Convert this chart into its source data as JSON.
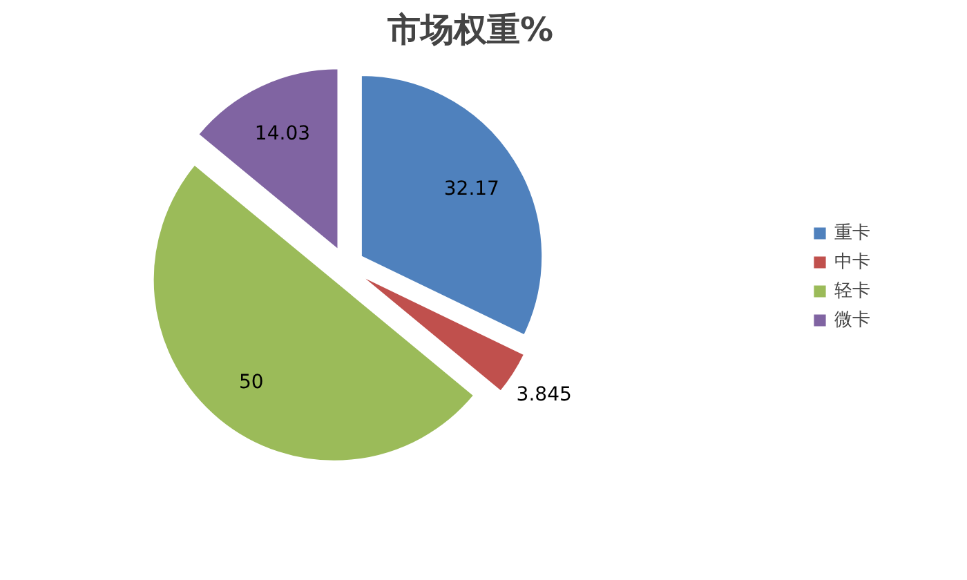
{
  "chart_data": {
    "type": "pie",
    "title": "市场权重%",
    "categories": [
      "重卡",
      "中卡",
      "轻卡",
      "微卡"
    ],
    "values": [
      32.17,
      3.845,
      50,
      14.03
    ],
    "colors": [
      "#4f81bd",
      "#c0504d",
      "#9bbb59",
      "#8064a2"
    ],
    "data_labels": true,
    "legend": "right"
  }
}
